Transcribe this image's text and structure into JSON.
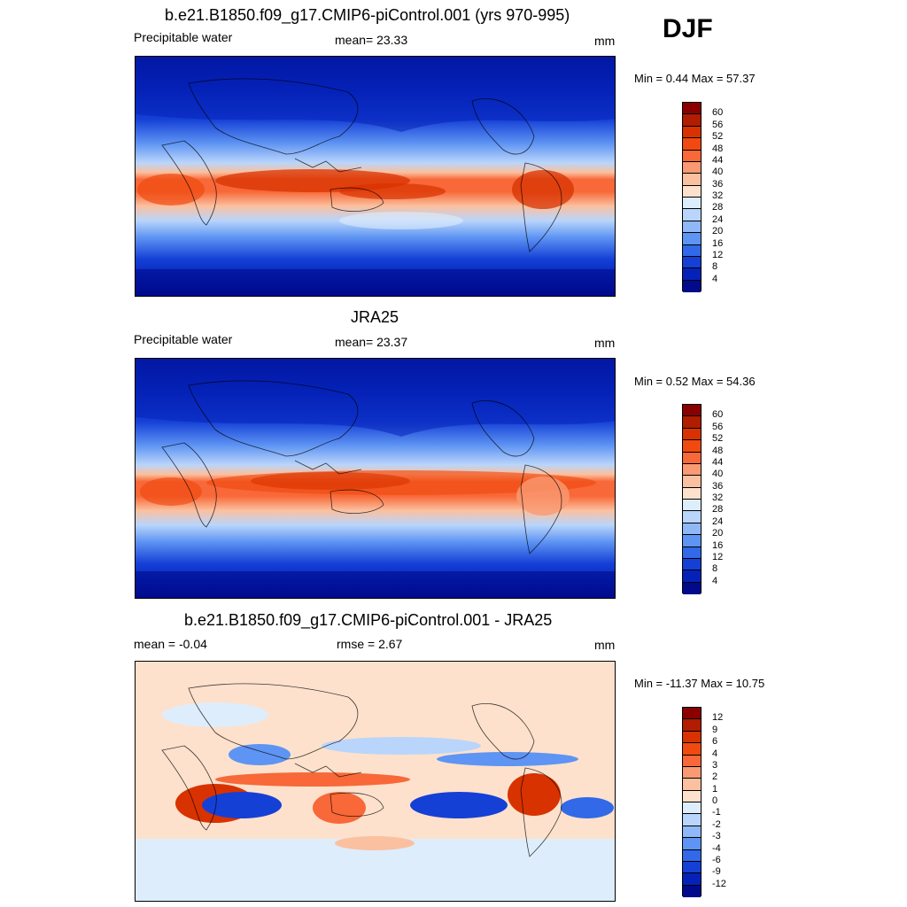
{
  "season": "DJF",
  "panels": [
    {
      "title": "b.e21.B1850.f09_g17.CMIP6-piControl.001 (yrs 970-995)",
      "left_label": "Precipitable water",
      "center_label": "mean=  23.33",
      "units": "mm",
      "minmax": "Min =   0.44 Max =  57.37",
      "colorbar": {
        "labels": [
          "60",
          "56",
          "52",
          "48",
          "44",
          "40",
          "36",
          "32",
          "28",
          "24",
          "20",
          "16",
          "12",
          "8",
          "4"
        ],
        "colors": [
          "#8a0000",
          "#b01d00",
          "#d83200",
          "#f04a10",
          "#f86838",
          "#f99a73",
          "#fbc09f",
          "#fde1cc",
          "#deedfb",
          "#b9d5fb",
          "#8fb8f8",
          "#5e94f3",
          "#3269e8",
          "#1540d6",
          "#0522b8",
          "#000a8a"
        ]
      }
    },
    {
      "title": "JRA25",
      "left_label": "Precipitable water",
      "center_label": "mean=  23.37",
      "units": "mm",
      "minmax": "Min =   0.52 Max =  54.36",
      "colorbar": {
        "labels": [
          "60",
          "56",
          "52",
          "48",
          "44",
          "40",
          "36",
          "32",
          "28",
          "24",
          "20",
          "16",
          "12",
          "8",
          "4"
        ],
        "colors": [
          "#8a0000",
          "#b01d00",
          "#d83200",
          "#f04a10",
          "#f86838",
          "#f99a73",
          "#fbc09f",
          "#fde1cc",
          "#deedfb",
          "#b9d5fb",
          "#8fb8f8",
          "#5e94f3",
          "#3269e8",
          "#1540d6",
          "#0522b8",
          "#000a8a"
        ]
      }
    },
    {
      "title": "b.e21.B1850.f09_g17.CMIP6-piControl.001 - JRA25",
      "left_label": "mean =  -0.04",
      "center_label": "rmse =   2.67",
      "units": "mm",
      "minmax": "Min = -11.37 Max =  10.75",
      "colorbar": {
        "labels": [
          "12",
          "9",
          "6",
          "4",
          "3",
          "2",
          "1",
          "0",
          "-1",
          "-2",
          "-3",
          "-4",
          "-6",
          "-9",
          "-12"
        ],
        "colors": [
          "#8a0000",
          "#b01d00",
          "#d83200",
          "#f04a10",
          "#f86838",
          "#f99a73",
          "#fbc09f",
          "#fde1cc",
          "#deedfb",
          "#b9d5fb",
          "#8fb8f8",
          "#5e94f3",
          "#3269e8",
          "#1540d6",
          "#0522b8",
          "#000a8a"
        ]
      }
    }
  ]
}
